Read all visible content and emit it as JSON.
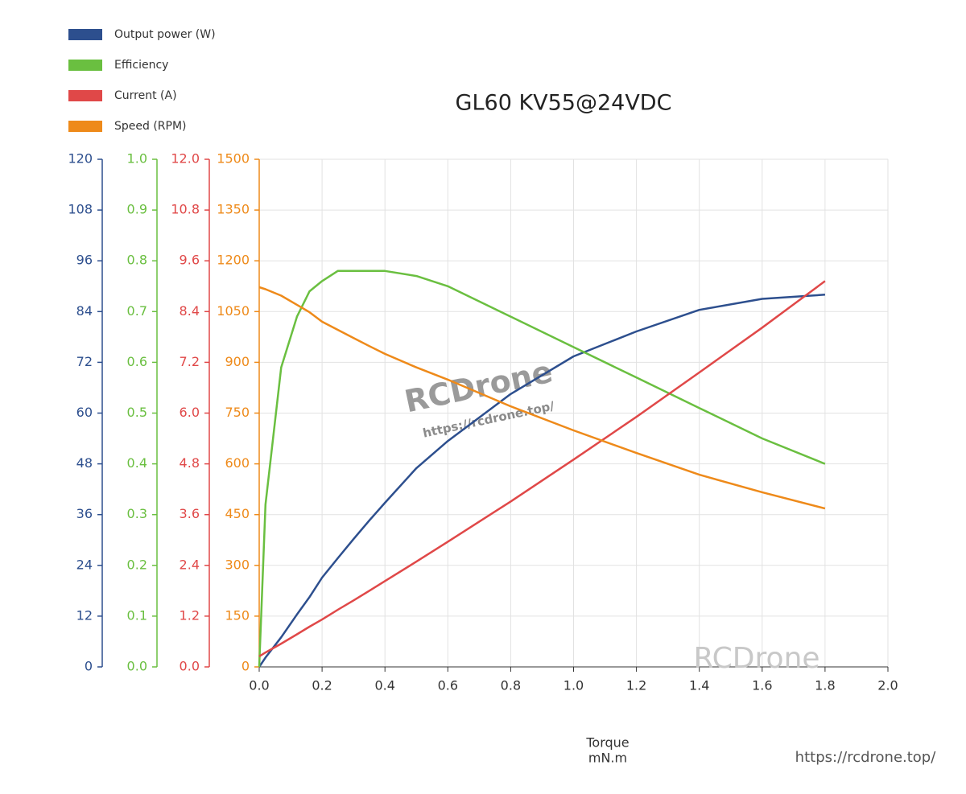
{
  "chart_data": {
    "type": "line",
    "title": "GL60 KV55@24VDC",
    "xlabel": [
      "Torque",
      "mN.m"
    ],
    "annotations": [
      "RCDrone",
      "https://rcdrone.top/",
      "RCDrone",
      "https://rcdrone.top/"
    ],
    "grid": true,
    "legend": "top-left",
    "x": [
      0,
      0.02,
      0.07,
      0.12,
      0.16,
      0.2,
      0.25,
      0.3,
      0.35,
      0.4,
      0.5,
      0.6,
      0.8,
      1.0,
      1.2,
      1.4,
      1.6,
      1.8
    ],
    "xlim": [
      0,
      2
    ],
    "xticks": [
      {
        "value": 0,
        "label": "0.0"
      },
      0.2,
      0.4,
      0.6,
      0.8,
      {
        "value": 1,
        "label": "1.0"
      },
      1.2,
      1.4,
      1.6,
      1.8,
      {
        "value": 2,
        "label": "2.0"
      }
    ],
    "ylim": [
      0,
      120
    ],
    "yticks": [
      0,
      12,
      24,
      36,
      48,
      60,
      72,
      84,
      96,
      108,
      120
    ],
    "y2lim": [
      0,
      1
    ],
    "y2ticks": [
      {
        "value": 0,
        "label": "0.0"
      },
      0.1,
      0.2,
      0.3,
      0.4,
      0.5,
      0.6,
      0.7,
      0.8,
      0.9,
      {
        "value": 1,
        "label": "1.0"
      }
    ],
    "y3lim": [
      0,
      12
    ],
    "y3ticks": [
      {
        "value": 0,
        "label": "0.0"
      },
      1.2,
      2.4,
      3.6,
      4.8,
      {
        "value": 6,
        "label": "6.0"
      },
      7.2,
      8.4,
      9.6,
      10.8,
      {
        "value": 12,
        "label": "12.0"
      }
    ],
    "y4lim": [
      0,
      1500
    ],
    "y4ticks": [
      0,
      150,
      300,
      450,
      600,
      750,
      900,
      1050,
      1200,
      1350,
      1500
    ],
    "series": [
      {
        "name": "Output power (W)",
        "color": "#2d4f8e",
        "axis": "y",
        "values": [
          0,
          2.2,
          7,
          12.4,
          16.5,
          21.1,
          25.7,
          30.2,
          34.6,
          38.8,
          47,
          53.4,
          64.5,
          73.4,
          79.3,
          84.4,
          87,
          88
        ]
      },
      {
        "name": "Efficiency",
        "color": "#6abf40",
        "axis": "y2",
        "values": [
          0,
          0.32,
          0.59,
          0.69,
          0.74,
          0.76,
          0.78,
          0.78,
          0.78,
          0.78,
          0.77,
          0.75,
          0.69,
          0.63,
          0.57,
          0.51,
          0.45,
          0.4
        ]
      },
      {
        "name": "Current (A)",
        "color": "#e04848",
        "axis": "y3",
        "values": [
          0.25,
          0.34,
          0.55,
          0.77,
          0.95,
          1.12,
          1.35,
          1.57,
          1.8,
          2.03,
          2.49,
          2.96,
          3.91,
          4.9,
          5.91,
          6.96,
          8.02,
          9.12
        ]
      },
      {
        "name": "Speed (RPM)",
        "color": "#ee8a1a",
        "axis": "y4",
        "values": [
          1122,
          1116,
          1097,
          1070,
          1048,
          1020,
          996,
          972,
          948,
          925,
          885,
          849,
          770,
          699,
          632,
          568,
          516,
          468
        ]
      }
    ]
  }
}
